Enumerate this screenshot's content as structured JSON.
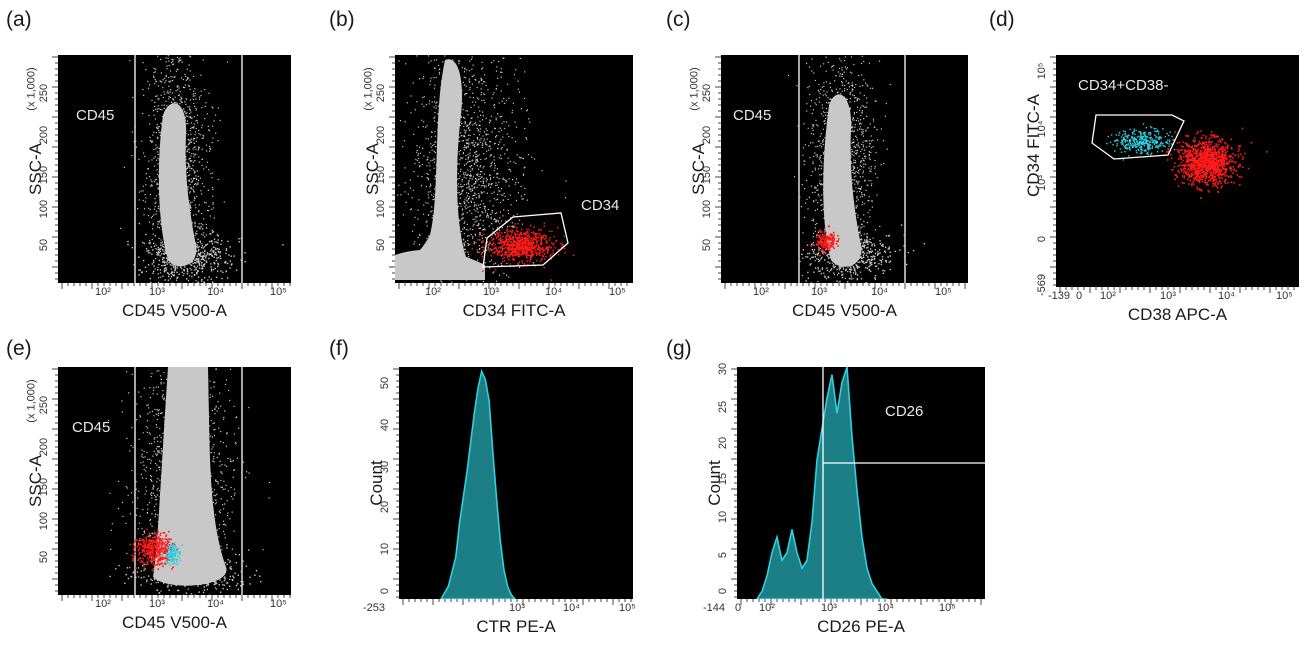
{
  "chart_data": [
    {
      "id": "a",
      "type": "scatter",
      "panel_label": "(a)",
      "xlabel": "CD45 V500-A",
      "ylabel": "SSC-A",
      "yunit": "(x 1,000)",
      "xscale": "log",
      "xticks": [
        "10²",
        "10³",
        "10⁴",
        "10⁵"
      ],
      "yticks": [
        "50",
        "100",
        "150",
        "200",
        "250"
      ],
      "ylim": [
        0,
        262
      ],
      "gate_label": "CD45",
      "series": [
        {
          "color": "#c8c8c8",
          "center_logx": 3.0,
          "center_y": 110,
          "spread": "vertical"
        }
      ]
    },
    {
      "id": "b",
      "type": "scatter",
      "panel_label": "(b)",
      "xlabel": "CD34 FITC-A",
      "ylabel": "SSC-A",
      "yunit": "(x 1,000)",
      "xscale": "log",
      "xticks": [
        "10²",
        "10³",
        "10⁴",
        "10⁵"
      ],
      "yticks": [
        "50",
        "100",
        "150",
        "200",
        "250"
      ],
      "ylim": [
        0,
        262
      ],
      "gate_label": "CD34",
      "series": [
        {
          "color": "#c8c8c8"
        },
        {
          "color": "#ff1a1a"
        }
      ]
    },
    {
      "id": "c",
      "type": "scatter",
      "panel_label": "(c)",
      "xlabel": "CD45 V500-A",
      "ylabel": "SSC-A",
      "yunit": "(x 1,000)",
      "xscale": "log",
      "xticks": [
        "10²",
        "10³",
        "10⁴",
        "10⁵"
      ],
      "yticks": [
        "50",
        "100",
        "150",
        "200",
        "250"
      ],
      "ylim": [
        0,
        262
      ],
      "gate_label": "CD45",
      "series": [
        {
          "color": "#c8c8c8"
        },
        {
          "color": "#ff1a1a"
        }
      ]
    },
    {
      "id": "d",
      "type": "scatter",
      "panel_label": "(d)",
      "xlabel": "CD38 APC-A",
      "ylabel": "CD34 FITC-A",
      "xscale": "log",
      "xticks": [
        "-139",
        "0",
        "10²",
        "10³",
        "10⁴",
        "10⁵"
      ],
      "yticks": [
        "-569",
        "0",
        "10³",
        "10⁴",
        "10⁵"
      ],
      "gate_label": "CD34+CD38-",
      "series": [
        {
          "color": "#2fd0e0"
        },
        {
          "color": "#ff1a1a"
        }
      ]
    },
    {
      "id": "e",
      "type": "scatter",
      "panel_label": "(e)",
      "xlabel": "CD45 V500-A",
      "ylabel": "SSC-A",
      "yunit": "(x 1,000)",
      "xscale": "log",
      "xticks": [
        "10²",
        "10³",
        "10⁴",
        "10⁵"
      ],
      "yticks": [
        "50",
        "100",
        "150",
        "200",
        "250"
      ],
      "ylim": [
        0,
        262
      ],
      "gate_label": "CD45",
      "series": [
        {
          "color": "#c8c8c8"
        },
        {
          "color": "#ff1a1a"
        },
        {
          "color": "#2fd0e0"
        }
      ]
    },
    {
      "id": "f",
      "type": "area",
      "panel_label": "(f)",
      "xlabel": "CTR PE-A",
      "ylabel": "Count",
      "xscale": "log",
      "xticks": [
        "-253",
        "10³",
        "10⁴",
        "10⁵"
      ],
      "yticks": [
        "0",
        "10",
        "20",
        "30",
        "40",
        "50"
      ],
      "ylim": [
        0,
        55
      ],
      "series": [
        {
          "color": "#2fd0e0",
          "x": [
            0.0,
            0.02,
            0.04,
            0.05,
            0.06,
            0.07,
            0.08,
            0.09,
            0.1,
            0.11,
            0.12,
            0.13,
            0.14,
            0.15,
            0.16,
            0.17,
            0.18,
            0.19,
            0.2
          ],
          "values": [
            0,
            3,
            10,
            18,
            24,
            30,
            37,
            44,
            50,
            54,
            52,
            47,
            35,
            24,
            14,
            7,
            3,
            1,
            0
          ]
        }
      ]
    },
    {
      "id": "g",
      "type": "area",
      "panel_label": "(g)",
      "xlabel": "CD26 PE-A",
      "ylabel": "Count",
      "xscale": "log",
      "xticks": [
        "-144",
        "0",
        "10²",
        "10³",
        "10⁴",
        "10⁵"
      ],
      "yticks": [
        "0",
        "5",
        "10",
        "15",
        "20",
        "25",
        "30"
      ],
      "ylim": [
        0,
        30
      ],
      "gate_label": "CD26",
      "series": [
        {
          "color": "#2fd0e0",
          "x": [
            0.0,
            0.02,
            0.04,
            0.06,
            0.08,
            0.1,
            0.12,
            0.14,
            0.16,
            0.18,
            0.2,
            0.22,
            0.24,
            0.26,
            0.28,
            0.3,
            0.32,
            0.34,
            0.36,
            0.38,
            0.4,
            0.42,
            0.44,
            0.46,
            0.48,
            0.5,
            0.52
          ],
          "values": [
            0,
            1,
            3,
            6,
            8,
            5,
            6,
            9,
            6,
            4,
            5,
            10,
            18,
            22,
            26,
            29,
            24,
            28,
            30,
            21,
            14,
            8,
            4,
            2,
            1,
            0,
            0
          ]
        }
      ]
    }
  ]
}
